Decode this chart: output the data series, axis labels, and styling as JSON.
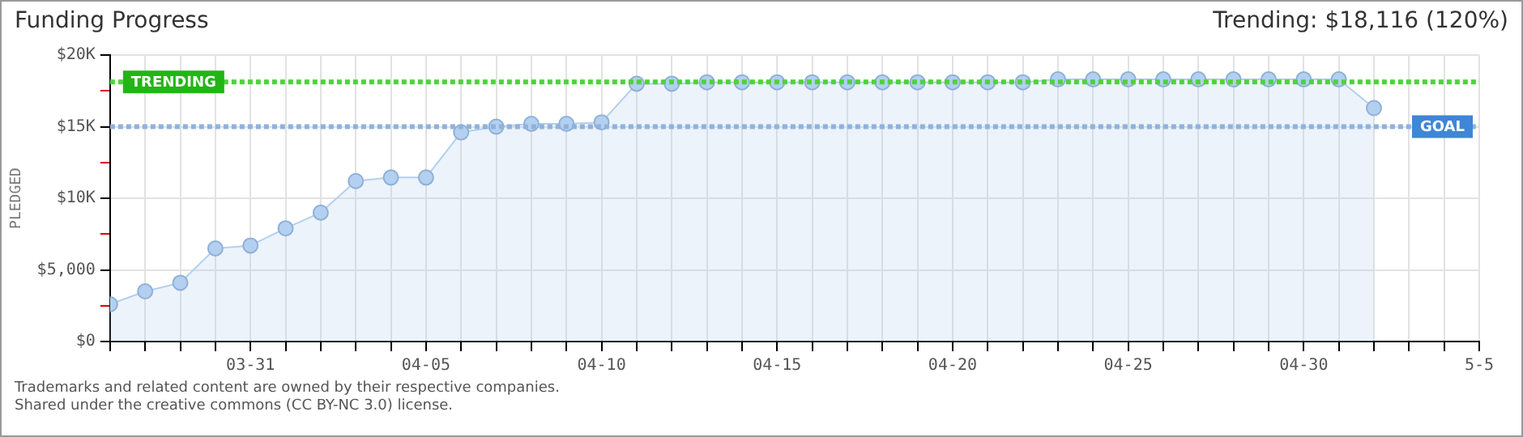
{
  "chart_data": {
    "type": "area",
    "title": "Funding Progress",
    "subtitle": "Trending: $18,116 (120%)",
    "ylabel": "PLEDGED",
    "x": [
      "--03-27",
      "--03-28",
      "--03-29",
      "--03-30",
      "--03-31",
      "--04-01",
      "--04-02",
      "--04-03",
      "--04-04",
      "--04-05",
      "--04-06",
      "--04-07",
      "--04-08",
      "--04-09",
      "--04-10",
      "--04-11",
      "--04-12",
      "--04-13",
      "--04-14",
      "--04-15",
      "--04-16",
      "--04-17",
      "--04-18",
      "--04-19",
      "--04-20",
      "--04-21",
      "--04-22",
      "--04-23",
      "--04-24",
      "--04-25",
      "--04-26",
      "--04-27",
      "--04-28",
      "--04-29",
      "--04-30",
      "--05-01",
      "--05-02"
    ],
    "series": [
      {
        "color": "#b3d0f0",
        "values": [
          2600,
          3500,
          4100,
          6500,
          6700,
          7900,
          9000,
          11200,
          11450,
          11450,
          14600,
          15000,
          15200,
          15200,
          15300,
          18000,
          18000,
          18100,
          18100,
          18100,
          18100,
          18100,
          18100,
          18100,
          18100,
          18100,
          18100,
          18300,
          18300,
          18300,
          18300,
          18300,
          18300,
          18300,
          18300,
          18300,
          16300
        ]
      }
    ],
    "marker": "circle",
    "grid": true,
    "legend": false,
    "xlim": [
      "--03-27",
      "--05-05"
    ],
    "xticks": [
      {
        "value": "--03-27",
        "label": null
      },
      {
        "value": "--03-28",
        "label": null
      },
      {
        "value": "--03-29",
        "label": null
      },
      {
        "value": "--03-30",
        "label": null
      },
      {
        "value": "--03-31",
        "label": "03-31"
      },
      {
        "value": "--04-01",
        "label": null
      },
      {
        "value": "--04-02",
        "label": null
      },
      {
        "value": "--04-03",
        "label": null
      },
      {
        "value": "--04-04",
        "label": null
      },
      {
        "value": "--04-05",
        "label": "04-05"
      },
      {
        "value": "--04-06",
        "label": null
      },
      {
        "value": "--04-07",
        "label": null
      },
      {
        "value": "--04-08",
        "label": null
      },
      {
        "value": "--04-09",
        "label": null
      },
      {
        "value": "--04-10",
        "label": "04-10"
      },
      {
        "value": "--04-11",
        "label": null
      },
      {
        "value": "--04-12",
        "label": null
      },
      {
        "value": "--04-13",
        "label": null
      },
      {
        "value": "--04-14",
        "label": null
      },
      {
        "value": "--04-15",
        "label": "04-15"
      },
      {
        "value": "--04-16",
        "label": null
      },
      {
        "value": "--04-17",
        "label": null
      },
      {
        "value": "--04-18",
        "label": null
      },
      {
        "value": "--04-19",
        "label": null
      },
      {
        "value": "--04-20",
        "label": "04-20"
      },
      {
        "value": "--04-21",
        "label": null
      },
      {
        "value": "--04-22",
        "label": null
      },
      {
        "value": "--04-23",
        "label": null
      },
      {
        "value": "--04-24",
        "label": null
      },
      {
        "value": "--04-25",
        "label": "04-25"
      },
      {
        "value": "--04-26",
        "label": null
      },
      {
        "value": "--04-27",
        "label": null
      },
      {
        "value": "--04-28",
        "label": null
      },
      {
        "value": "--04-29",
        "label": null
      },
      {
        "value": "--04-30",
        "label": "04-30"
      },
      {
        "value": "--05-01",
        "label": null
      },
      {
        "value": "--05-02",
        "label": null
      },
      {
        "value": "--05-03",
        "label": null
      },
      {
        "value": "--05-04",
        "label": null
      },
      {
        "value": "--05-05",
        "label": "5-5"
      }
    ],
    "ylim": [
      0,
      20000
    ],
    "yticks": [
      {
        "value": 0,
        "label": "$0"
      },
      {
        "value": 2500,
        "label": null
      },
      {
        "value": 5000,
        "label": "$5,000"
      },
      {
        "value": 7500,
        "label": null
      },
      {
        "value": 10000,
        "label": "$10K"
      },
      {
        "value": 12500,
        "label": null
      },
      {
        "value": 15000,
        "label": "$15K"
      },
      {
        "value": 17500,
        "label": null
      },
      {
        "value": 20000,
        "label": "$20K"
      }
    ],
    "ref_lines": [
      {
        "axis": "y",
        "value": 18116,
        "label": "TRENDING",
        "color": "#4fd13f",
        "line_style": "dotted"
      },
      {
        "axis": "y",
        "value": 15000,
        "label": "GOAL",
        "color": "#8fb2dc",
        "line_style": "dotted"
      }
    ],
    "annotations": [
      "Trademarks and related content are owned by their respective companies.",
      "Shared under the creative commons (CC BY-NC 3.0) license."
    ]
  }
}
